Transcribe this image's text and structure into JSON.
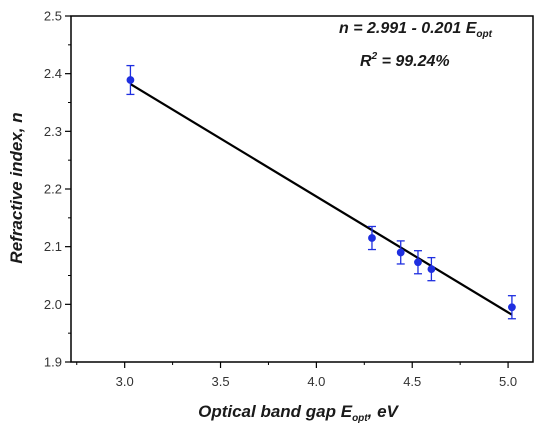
{
  "chart_data": {
    "type": "scatter",
    "xlabel": {
      "main": "Optical band gap E",
      "sub": "opt",
      "tail": ", eV"
    },
    "ylabel": "Refractive index, n",
    "xlim": [
      2.72,
      5.13
    ],
    "ylim": [
      1.9,
      2.5
    ],
    "xticks": [
      "3.0",
      "3.5",
      "4.0",
      "4.5",
      "5.0"
    ],
    "yticks": [
      "1.9",
      "2.0",
      "2.1",
      "2.2",
      "2.3",
      "2.4",
      "2.5"
    ],
    "points": [
      {
        "x": 3.03,
        "y": 2.389,
        "err": 0.025
      },
      {
        "x": 4.29,
        "y": 2.115,
        "err": 0.02
      },
      {
        "x": 4.44,
        "y": 2.09,
        "err": 0.02
      },
      {
        "x": 4.53,
        "y": 2.073,
        "err": 0.02
      },
      {
        "x": 4.6,
        "y": 2.061,
        "err": 0.02
      },
      {
        "x": 5.02,
        "y": 1.995,
        "err": 0.02
      }
    ],
    "fit": {
      "intercept": 2.991,
      "slope": -0.201,
      "x_range": [
        3.03,
        5.02
      ]
    },
    "annotations": {
      "equation_main": "n = 2.991 - 0.201 E",
      "equation_sub": "opt",
      "r2_label": "R",
      "r2_sup": "2",
      "r2_value": " = 99.24%"
    },
    "colors": {
      "points": "#1f2fe0",
      "fit_line": "#000000",
      "axes": "#000000"
    },
    "grid": false,
    "legend": "none"
  }
}
